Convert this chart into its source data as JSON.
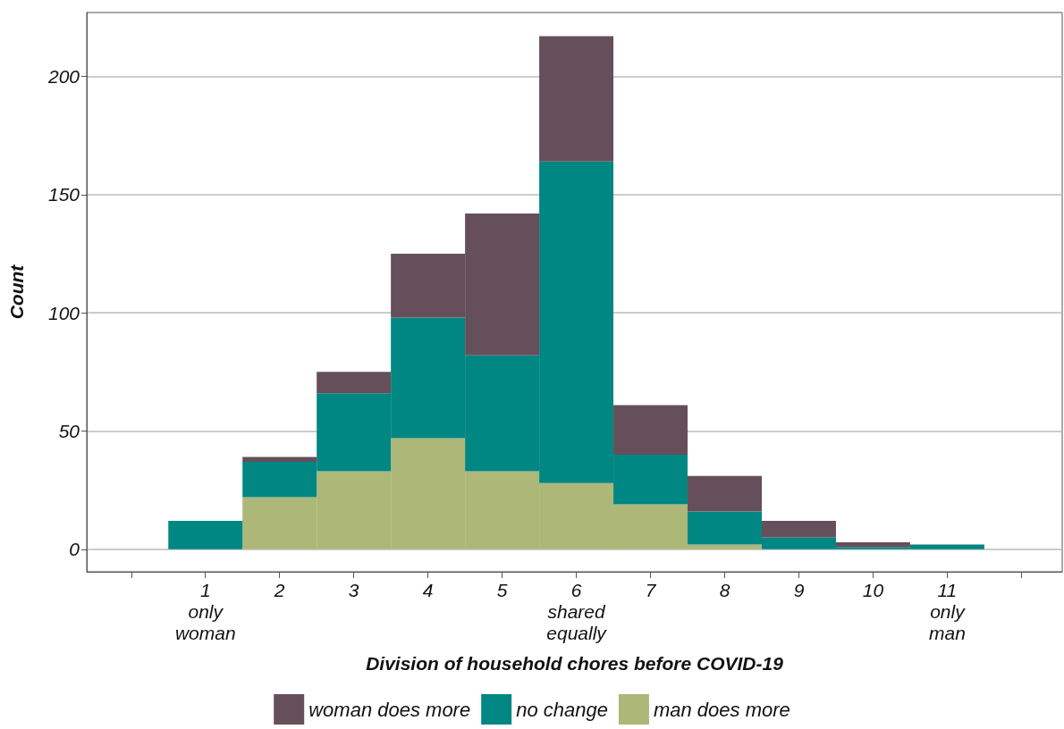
{
  "chart_data": {
    "type": "bar",
    "xlabel": "Division of household chores before COVID-19",
    "ylabel": "Count",
    "x": [
      1,
      2,
      3,
      4,
      5,
      6,
      7,
      8,
      9,
      10,
      11
    ],
    "stacked": true,
    "series": [
      {
        "name": "man does more",
        "color": "#adb777",
        "values": [
          0,
          22,
          33,
          47,
          33,
          28,
          19,
          2,
          0,
          0,
          0
        ]
      },
      {
        "name": "no change",
        "color": "#008683",
        "values": [
          12,
          15,
          33,
          51,
          49,
          136,
          21,
          14,
          5,
          1,
          2
        ]
      },
      {
        "name": "woman does more",
        "color": "#654f5a",
        "values": [
          0,
          2,
          9,
          27,
          60,
          53,
          21,
          15,
          7,
          2,
          0
        ]
      }
    ],
    "xlim": [
      -0.6,
      12.55
    ],
    "xticks": [
      {
        "value": 0,
        "label": null
      },
      {
        "value": 1,
        "label": "1\nonly\nwoman"
      },
      2,
      3,
      4,
      5,
      {
        "value": 6,
        "label": "6\nshared\nequally"
      },
      7,
      8,
      9,
      10,
      {
        "value": 11,
        "label": "11\nonly\nman"
      },
      {
        "value": 12,
        "label": null
      }
    ],
    "ylim": [
      -9.5,
      227
    ],
    "yticks": [
      0,
      50,
      100,
      150,
      200
    ],
    "grid": "y",
    "legend": "bottom"
  }
}
